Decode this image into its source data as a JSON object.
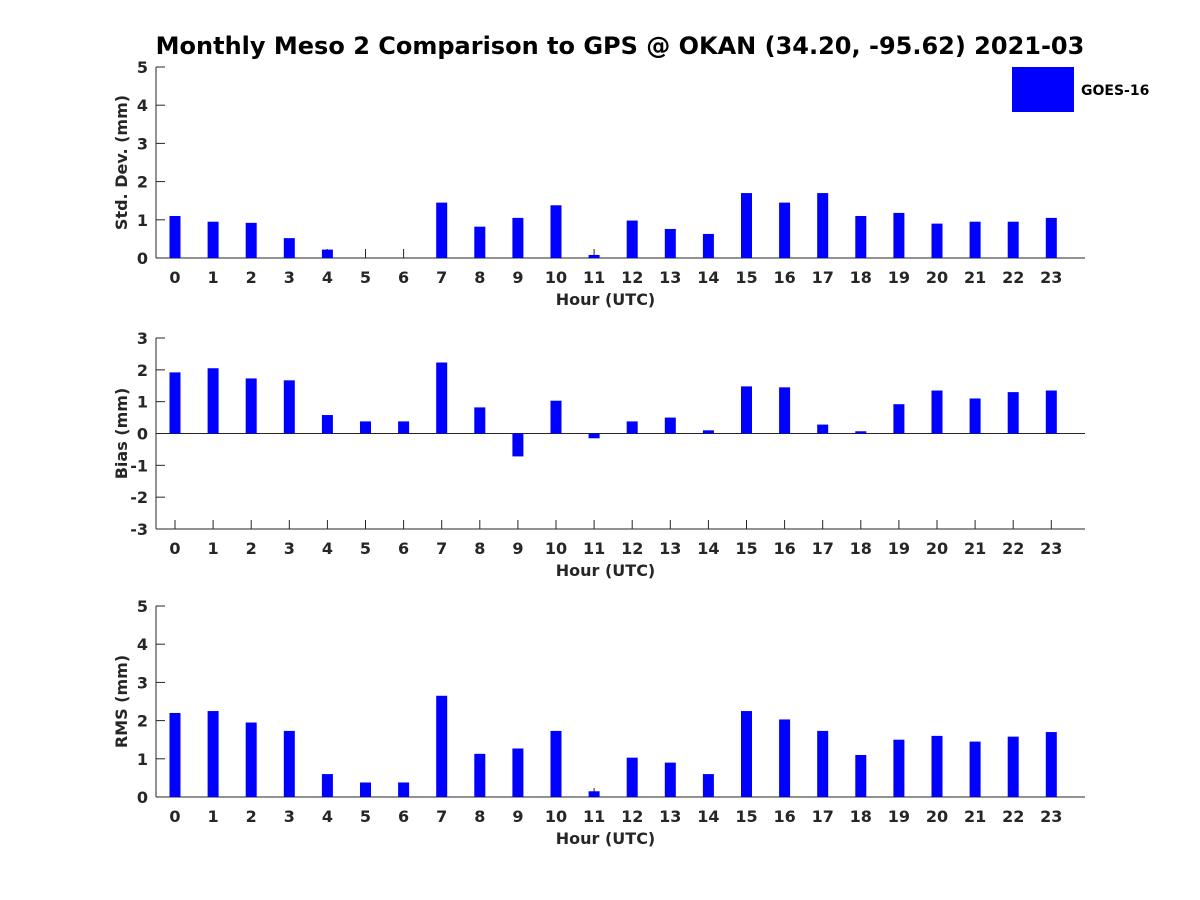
{
  "colors": {
    "bar": "#0000ff",
    "axis": "#262626",
    "background": "#ffffff"
  },
  "chart_data": {
    "title": "Monthly Meso 2 Comparison to GPS @ OKAN (34.20, -95.62) 2021-03",
    "legend": {
      "label": "GOES-16",
      "placement": "top-right"
    },
    "categories": [
      "0",
      "1",
      "2",
      "3",
      "4",
      "5",
      "6",
      "7",
      "8",
      "9",
      "10",
      "11",
      "12",
      "13",
      "14",
      "15",
      "16",
      "17",
      "18",
      "19",
      "20",
      "21",
      "22",
      "23"
    ],
    "panels": [
      {
        "type": "bar",
        "ylabel": "Std. Dev. (mm)",
        "xlabel": "Hour (UTC)",
        "ylim": [
          0,
          5
        ],
        "yticks": [
          "0",
          "1",
          "2",
          "3",
          "4",
          "5"
        ],
        "series": [
          {
            "name": "GOES-16",
            "values": [
              1.1,
              0.95,
              0.92,
              0.52,
              0.22,
              0.0,
              0.0,
              1.45,
              0.82,
              1.05,
              1.38,
              0.08,
              0.98,
              0.76,
              0.63,
              1.7,
              1.45,
              1.7,
              1.1,
              1.18,
              0.9,
              0.95,
              0.95,
              1.05
            ]
          }
        ]
      },
      {
        "type": "bar",
        "ylabel": "Bias (mm)",
        "xlabel": "Hour (UTC)",
        "ylim": [
          -3,
          3
        ],
        "yticks": [
          "-3",
          "-2",
          "-1",
          "0",
          "1",
          "2",
          "3"
        ],
        "series": [
          {
            "name": "GOES-16",
            "values": [
              1.92,
              2.05,
              1.73,
              1.67,
              0.58,
              0.38,
              0.38,
              2.23,
              0.82,
              -0.72,
              1.03,
              -0.15,
              0.38,
              0.5,
              0.1,
              1.48,
              1.45,
              0.28,
              0.07,
              0.92,
              1.35,
              1.1,
              1.3,
              1.35
            ]
          }
        ]
      },
      {
        "type": "bar",
        "ylabel": "RMS (mm)",
        "xlabel": "Hour (UTC)",
        "ylim": [
          0,
          5
        ],
        "yticks": [
          "0",
          "1",
          "2",
          "3",
          "4",
          "5"
        ],
        "series": [
          {
            "name": "GOES-16",
            "values": [
              2.2,
              2.25,
              1.95,
              1.73,
              0.6,
              0.38,
              0.38,
              2.65,
              1.13,
              1.27,
              1.73,
              0.15,
              1.03,
              0.9,
              0.6,
              2.25,
              2.03,
              1.73,
              1.1,
              1.5,
              1.6,
              1.45,
              1.58,
              1.7
            ]
          }
        ]
      }
    ]
  }
}
